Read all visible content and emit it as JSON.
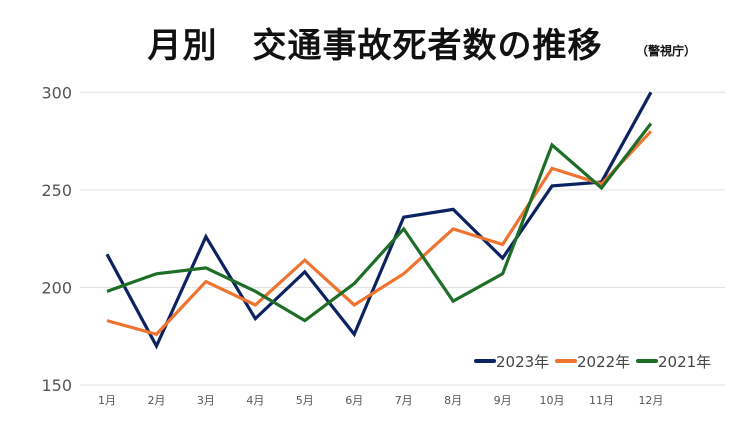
{
  "chart_data": {
    "type": "line",
    "title": "月別　交通事故死者数の推移",
    "source_note": "（警視庁）",
    "categories": [
      "1月",
      "2月",
      "3月",
      "4月",
      "5月",
      "6月",
      "7月",
      "8月",
      "9月",
      "10月",
      "11月",
      "12月"
    ],
    "series": [
      {
        "name": "2023年",
        "color": "#0b2461",
        "values": [
          217,
          170,
          226,
          184,
          208,
          176,
          236,
          240,
          215,
          252,
          254,
          300
        ]
      },
      {
        "name": "2022年",
        "color": "#ee7430",
        "values": [
          183,
          176,
          203,
          191,
          214,
          191,
          207,
          230,
          222,
          261,
          253,
          280
        ]
      },
      {
        "name": "2021年",
        "color": "#1f6e28",
        "values": [
          198,
          207,
          210,
          198,
          183,
          202,
          230,
          193,
          207,
          273,
          251,
          284
        ]
      }
    ],
    "ylim": [
      150,
      300
    ],
    "yticks": [
      150,
      200,
      250,
      300
    ],
    "grid": true,
    "legend_position": "bottom-right",
    "xlabel": "",
    "ylabel": ""
  }
}
